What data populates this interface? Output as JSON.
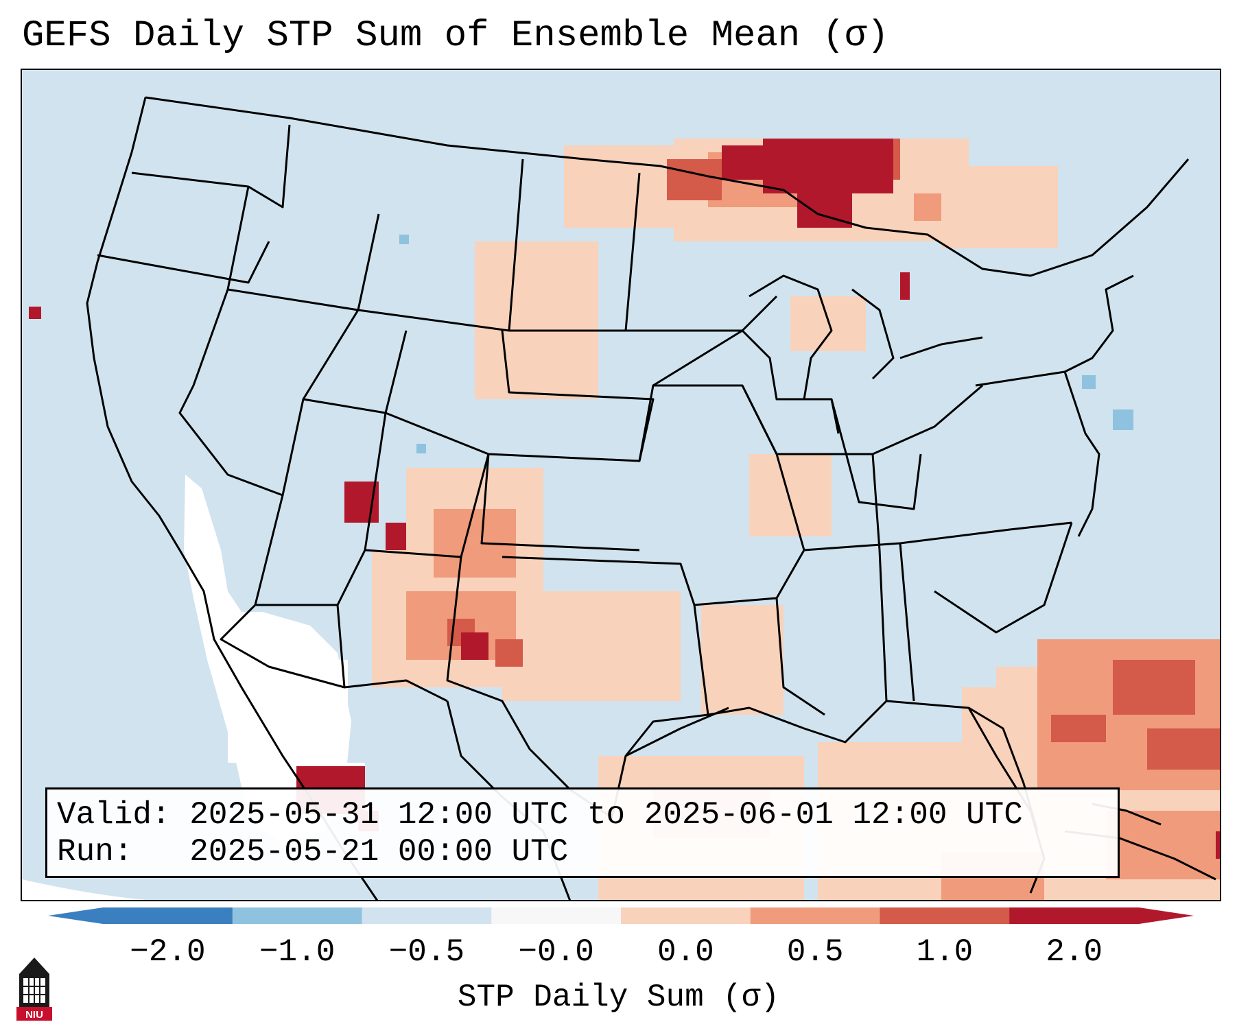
{
  "title": "GEFS Daily STP Sum of Ensemble Mean (σ)",
  "info": {
    "valid_label": "Valid:",
    "valid_value": "2025-05-31 12:00 UTC to 2025-06-01 12:00 UTC",
    "run_label": "Run:",
    "run_value": "2025-05-21 00:00 UTC"
  },
  "colorbar": {
    "label": "STP Daily Sum (σ)",
    "ticks": [
      "−2.0",
      "−1.0",
      "−0.5",
      "−0.0",
      "0.0",
      "0.5",
      "1.0",
      "2.0"
    ],
    "colors": [
      "#3a7fbf",
      "#8fc2de",
      "#d0e3ef",
      "#f7f7f7",
      "#f9d2bb",
      "#ef9b7c",
      "#d45a4a",
      "#b2182b"
    ]
  },
  "logo": {
    "text": "NIU",
    "icon": "university-tower-icon"
  },
  "map_features": {
    "region": "CONUS with Mexico, Gulf of Mexico and western Atlantic",
    "anomaly_regions": [
      {
        "label": "Southern Canada / Upper Midwest",
        "level": "strong-positive"
      },
      {
        "label": "Four Corners / New Mexico",
        "level": "strong-positive"
      },
      {
        "label": "Western Atlantic",
        "level": "moderate-positive"
      },
      {
        "label": "Southwest desert and Baja",
        "level": "near-zero"
      },
      {
        "label": "Central Mexico",
        "level": "strong-positive"
      }
    ]
  }
}
